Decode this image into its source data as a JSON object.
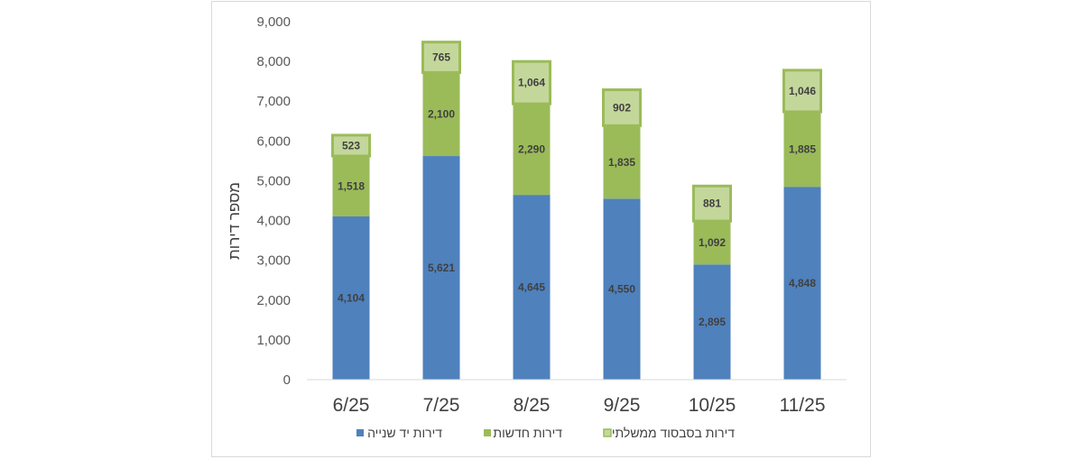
{
  "chart_data": {
    "type": "bar",
    "stacked": true,
    "categories": [
      "6/25",
      "7/25",
      "8/25",
      "9/25",
      "10/25",
      "11/25"
    ],
    "ylabel": "מספר דירות",
    "ylim": [
      0,
      9000
    ],
    "yticks": [
      "0",
      "1,000",
      "2,000",
      "3,000",
      "4,000",
      "5,000",
      "6,000",
      "7,000",
      "8,000",
      "9,000"
    ],
    "ytick_values": [
      0,
      1000,
      2000,
      3000,
      4000,
      5000,
      6000,
      7000,
      8000,
      9000
    ],
    "grid": false,
    "legend_position": "bottom",
    "series": [
      {
        "name": "דירות יד שנייה",
        "color": "#4f81bd",
        "values": [
          4104,
          5621,
          4645,
          4550,
          2895,
          4848
        ],
        "labels": [
          "4,104",
          "5,621",
          "4,645",
          "4,550",
          "2,895",
          "4,848"
        ]
      },
      {
        "name": "דירות חדשות",
        "color": "#9bbb59",
        "values": [
          1518,
          2100,
          2290,
          1835,
          1092,
          1885
        ],
        "labels": [
          "1,518",
          "2,100",
          "2,290",
          "1,835",
          "1,092",
          "1,885"
        ]
      },
      {
        "name": "דירות בסבסוד ממשלתי",
        "color": "#c4d79b",
        "border_color": "#9bbb59",
        "values": [
          523,
          765,
          1064,
          902,
          881,
          1046
        ],
        "labels": [
          "523",
          "765",
          "1,064",
          "902",
          "881",
          "1,046"
        ]
      }
    ]
  }
}
